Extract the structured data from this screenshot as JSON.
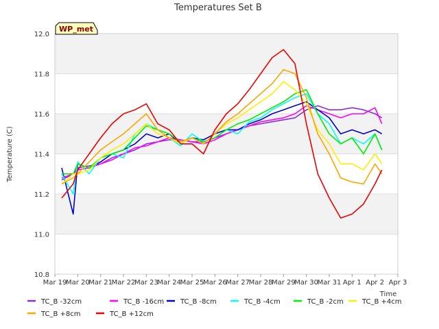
{
  "chart_data": {
    "type": "line",
    "title": "Temperatures Set B",
    "xlabel": "Time",
    "ylabel": "Temperature (C)",
    "badge": "WP_met",
    "ylim": [
      10.8,
      12.0
    ],
    "xlim": [
      0,
      15
    ],
    "y_ticks": [
      "10.8",
      "11.0",
      "11.2",
      "11.4",
      "11.6",
      "11.8",
      "12.0"
    ],
    "x_tick_labels": [
      "Mar 19",
      "Mar 20",
      "Mar 21",
      "Mar 22",
      "Mar 23",
      "Mar 24",
      "Mar 25",
      "Mar 26",
      "Mar 27",
      "Mar 28",
      "Mar 29",
      "Mar 30",
      "Mar 31",
      "Apr 1",
      "Apr 2",
      "Apr 3"
    ],
    "grid": true,
    "legend_position": "bottom",
    "x_days": [
      0.3,
      0.8,
      1.0,
      1.5,
      2.0,
      2.5,
      3.0,
      3.5,
      4.0,
      4.5,
      5.0,
      5.5,
      6.0,
      6.5,
      7.0,
      7.5,
      8.0,
      8.5,
      9.0,
      9.5,
      10.0,
      10.5,
      11.0,
      11.5,
      12.0,
      12.5,
      13.0,
      13.5,
      14.0,
      14.3
    ],
    "series": [
      {
        "name": "TC_B -32cm",
        "color": "#8a2be2",
        "values": [
          11.27,
          11.3,
          11.33,
          11.34,
          11.35,
          11.38,
          11.4,
          11.42,
          11.45,
          11.46,
          11.47,
          11.47,
          11.46,
          11.46,
          11.48,
          11.5,
          11.52,
          11.54,
          11.55,
          11.56,
          11.57,
          11.58,
          11.62,
          11.64,
          11.62,
          11.62,
          11.63,
          11.62,
          11.6,
          11.58
        ]
      },
      {
        "name": "TC_B -16cm",
        "color": "#ff00ff",
        "values": [
          11.28,
          11.3,
          11.32,
          11.33,
          11.35,
          11.37,
          11.4,
          11.43,
          11.44,
          11.46,
          11.48,
          11.47,
          11.46,
          11.45,
          11.47,
          11.5,
          11.52,
          11.54,
          11.56,
          11.57,
          11.58,
          11.6,
          11.64,
          11.62,
          11.6,
          11.58,
          11.6,
          11.6,
          11.63,
          11.55
        ]
      },
      {
        "name": "TC_B -8cm",
        "color": "#0000cd",
        "values": [
          11.33,
          11.1,
          11.35,
          11.33,
          11.36,
          11.4,
          11.42,
          11.45,
          11.5,
          11.48,
          11.5,
          11.45,
          11.48,
          11.47,
          11.5,
          11.52,
          11.52,
          11.55,
          11.57,
          11.6,
          11.62,
          11.64,
          11.66,
          11.62,
          11.58,
          11.5,
          11.52,
          11.5,
          11.52,
          11.5
        ]
      },
      {
        "name": "TC_B -4cm",
        "color": "#00ffff",
        "values": [
          11.3,
          11.2,
          11.36,
          11.3,
          11.38,
          11.4,
          11.38,
          11.5,
          11.55,
          11.52,
          11.48,
          11.44,
          11.5,
          11.46,
          11.48,
          11.52,
          11.5,
          11.56,
          11.58,
          11.62,
          11.65,
          11.68,
          11.7,
          11.6,
          11.55,
          11.45,
          11.48,
          11.45,
          11.5,
          11.42
        ]
      },
      {
        "name": "TC_B -2cm",
        "color": "#00ee00",
        "values": [
          11.3,
          11.3,
          11.35,
          11.33,
          11.38,
          11.4,
          11.42,
          11.48,
          11.54,
          11.52,
          11.5,
          11.46,
          11.48,
          11.46,
          11.48,
          11.52,
          11.55,
          11.57,
          11.6,
          11.63,
          11.66,
          11.7,
          11.72,
          11.6,
          11.5,
          11.45,
          11.48,
          11.4,
          11.5,
          11.42
        ]
      },
      {
        "name": "TC_B +4cm",
        "color": "#ffee00",
        "values": [
          11.25,
          11.3,
          11.3,
          11.32,
          11.38,
          11.42,
          11.45,
          11.5,
          11.55,
          11.5,
          11.48,
          11.45,
          11.48,
          11.45,
          11.5,
          11.55,
          11.58,
          11.62,
          11.66,
          11.7,
          11.76,
          11.72,
          11.65,
          11.52,
          11.45,
          11.35,
          11.35,
          11.32,
          11.4,
          11.35
        ]
      },
      {
        "name": "TC_B +8cm",
        "color": "#ffa500",
        "values": [
          11.25,
          11.28,
          11.3,
          11.36,
          11.42,
          11.46,
          11.5,
          11.55,
          11.6,
          11.52,
          11.48,
          11.46,
          11.48,
          11.45,
          11.5,
          11.56,
          11.6,
          11.65,
          11.7,
          11.75,
          11.82,
          11.8,
          11.68,
          11.5,
          11.4,
          11.28,
          11.26,
          11.25,
          11.35,
          11.3
        ]
      },
      {
        "name": "TC_B +12cm",
        "color": "#ee0000",
        "values": [
          11.18,
          11.25,
          11.32,
          11.4,
          11.48,
          11.55,
          11.6,
          11.62,
          11.65,
          11.55,
          11.52,
          11.45,
          11.45,
          11.4,
          11.52,
          11.6,
          11.65,
          11.72,
          11.8,
          11.88,
          11.92,
          11.85,
          11.55,
          11.3,
          11.18,
          11.08,
          11.1,
          11.15,
          11.25,
          11.32
        ]
      }
    ]
  }
}
